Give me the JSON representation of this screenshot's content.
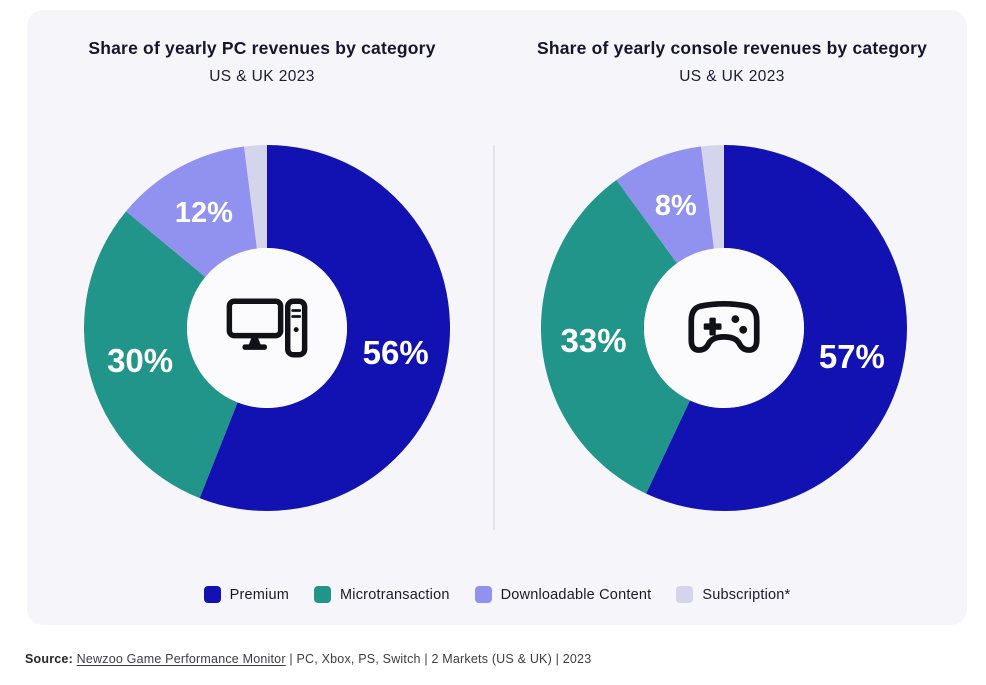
{
  "page": {
    "source": {
      "label": "Source:",
      "link_text": "Newzoo Game Performance Monitor",
      "rest": " | PC, Xbox, PS, Switch | 2 Markets (US & UK) | 2023"
    }
  },
  "legend": [
    {
      "label": "Premium",
      "color": "#1211B1"
    },
    {
      "label": "Microtransaction",
      "color": "#219589"
    },
    {
      "label": "Downloadable Content",
      "color": "#9191F0"
    },
    {
      "label": "Subscription*",
      "color": "#D4D4EC"
    }
  ],
  "chart_data": [
    {
      "type": "donut",
      "title": "Share of yearly PC revenues by category",
      "subtitle": "US & UK 2023",
      "center_icon": "desktop-pc",
      "categories": [
        "Premium",
        "Microtransaction",
        "Downloadable Content",
        "Subscription*"
      ],
      "values": [
        56,
        30,
        12,
        2
      ],
      "colors": [
        "#1211B1",
        "#219589",
        "#9191F0",
        "#D4D4EC"
      ],
      "labels_shown": [
        "56%",
        "30%",
        "12%",
        ""
      ],
      "label_color": "#FFFFFF",
      "hole_color": "#FBFBFE",
      "legend_position": "bottom",
      "start_angle_deg": 0,
      "direction": "clockwise"
    },
    {
      "type": "donut",
      "title": "Share of yearly console revenues by category",
      "subtitle": "US & UK 2023",
      "center_icon": "gamepad",
      "categories": [
        "Premium",
        "Microtransaction",
        "Downloadable Content",
        "Subscription*"
      ],
      "values": [
        57,
        33,
        8,
        2
      ],
      "colors": [
        "#1211B1",
        "#219589",
        "#9191F0",
        "#D4D4EC"
      ],
      "labels_shown": [
        "57%",
        "33%",
        "8%",
        ""
      ],
      "label_color": "#FFFFFF",
      "hole_color": "#FBFBFE",
      "legend_position": "bottom",
      "start_angle_deg": 0,
      "direction": "clockwise"
    }
  ]
}
